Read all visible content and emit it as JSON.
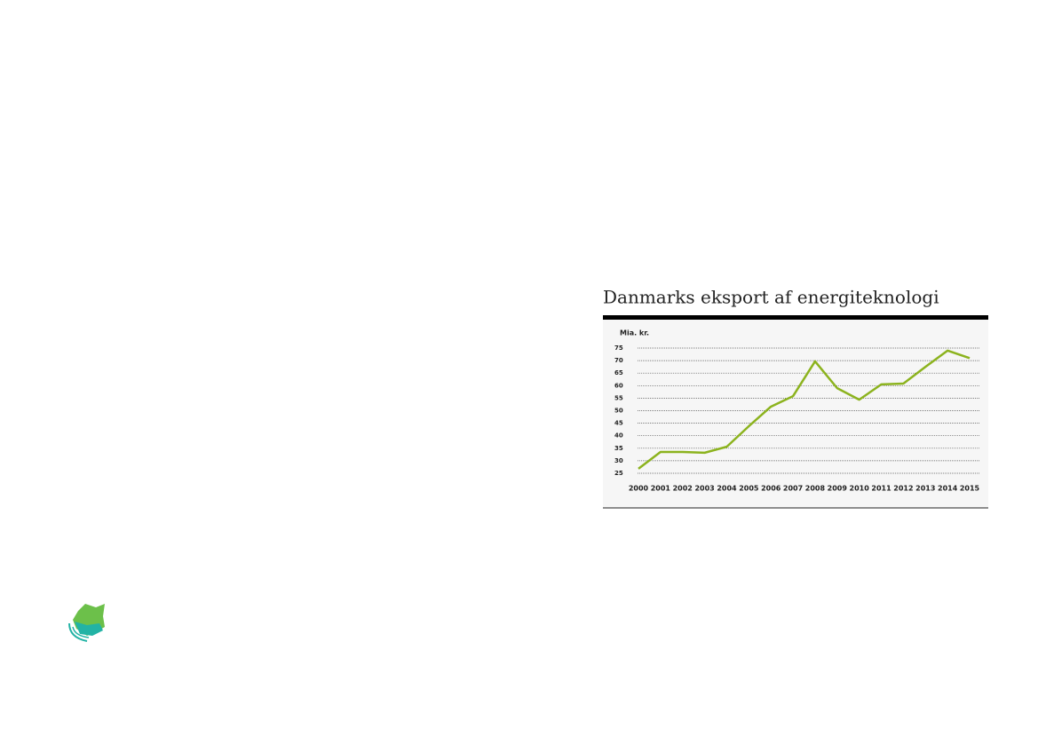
{
  "chart_data": {
    "type": "line",
    "title": "Danmarks eksport af energiteknologi",
    "y_label": "Mia. kr.",
    "categories": [
      "2000",
      "2001",
      "2002",
      "2003",
      "2004",
      "2005",
      "2006",
      "2007",
      "2008",
      "2009",
      "2010",
      "2011",
      "2012",
      "2013",
      "2014",
      "2015"
    ],
    "values": [
      26.8,
      33.5,
      33.5,
      33.2,
      35.6,
      43.8,
      51.6,
      55.8,
      69.7,
      59,
      54.4,
      60.5,
      60.8,
      67.5,
      74,
      71
    ],
    "color": "#8cb31e",
    "ylim": [
      25,
      75
    ],
    "yticks": [
      25,
      30,
      35,
      40,
      45,
      50,
      55,
      60,
      65,
      70,
      75
    ],
    "grid": true
  }
}
